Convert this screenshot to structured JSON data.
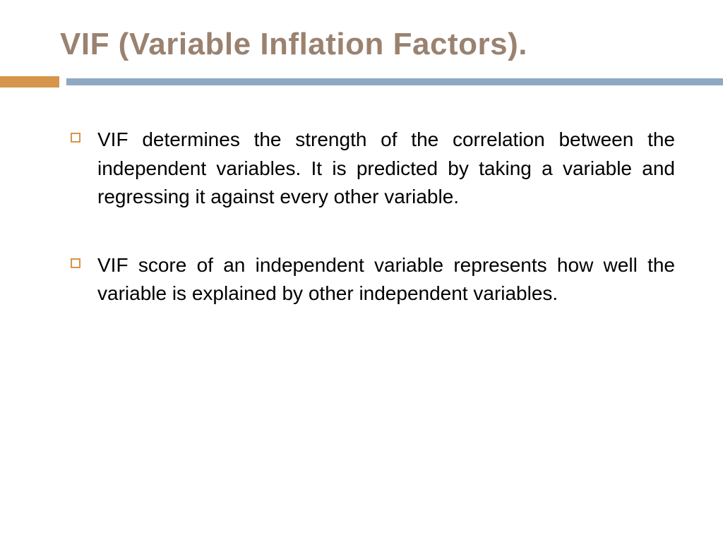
{
  "slide": {
    "title": "VIF (Variable Inflation Factors).",
    "title_color": "#9a8270",
    "title_fontsize": 44,
    "title_fontweight": 700,
    "accent_square_color": "#d6954a",
    "accent_line_color": "#8fa9c2",
    "bullet_marker_color": "#d6954a",
    "body_color": "#000000",
    "body_fontsize": 28,
    "bullets": [
      "VIF determines the strength of the correlation between the independent variables. It is predicted by taking a variable and regressing it against every other variable.",
      "VIF score of an independent variable represents how well the variable is explained by other independent variables."
    ],
    "background_color": "#ffffff"
  }
}
